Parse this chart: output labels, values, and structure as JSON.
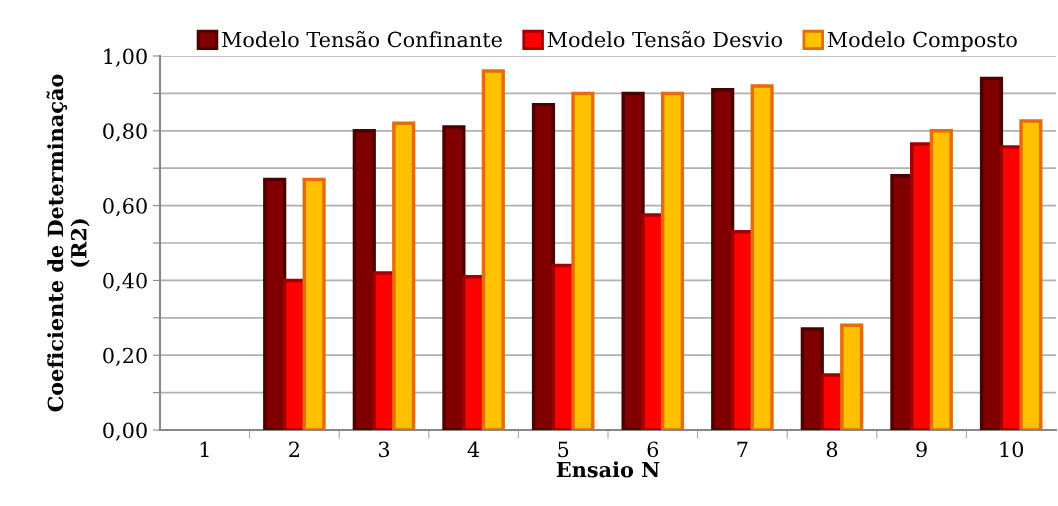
{
  "chart_data": {
    "type": "bar",
    "xlabel": "Ensaio N",
    "ylabel": "Coeficiente de Determinação\n(R2)",
    "categories": [
      "1",
      "2",
      "3",
      "4",
      "5",
      "6",
      "7",
      "8",
      "9",
      "10"
    ],
    "series": [
      {
        "name": "Modelo Tensão Confinante",
        "color": "#800000",
        "values": [
          null,
          0.67,
          0.8,
          0.81,
          0.87,
          0.9,
          0.91,
          0.27,
          0.68,
          0.94
        ]
      },
      {
        "name": "Modelo Tensão Desvio",
        "color": "#ff0000",
        "values": [
          null,
          0.4,
          0.42,
          0.41,
          0.44,
          0.575,
          0.53,
          0.147,
          0.765,
          0.757
        ]
      },
      {
        "name": "Modelo Composto",
        "color": "#ffc000",
        "values": [
          null,
          0.67,
          0.82,
          0.96,
          0.9,
          0.9,
          0.92,
          0.28,
          0.8,
          0.826
        ]
      }
    ],
    "ylim": [
      0,
      1
    ],
    "yticks": [
      {
        "value": 0,
        "label": "0,00"
      },
      {
        "value": 0.1,
        "label": null
      },
      {
        "value": 0.2,
        "label": "0,20"
      },
      {
        "value": 0.3,
        "label": null
      },
      {
        "value": 0.4,
        "label": "0,40"
      },
      {
        "value": 0.5,
        "label": null
      },
      {
        "value": 0.6,
        "label": "0,60"
      },
      {
        "value": 0.7,
        "label": null
      },
      {
        "value": 0.8,
        "label": "0,80"
      },
      {
        "value": 0.9,
        "label": null
      },
      {
        "value": 1,
        "label": "1,00"
      }
    ],
    "grid": "y",
    "legend": "top"
  }
}
